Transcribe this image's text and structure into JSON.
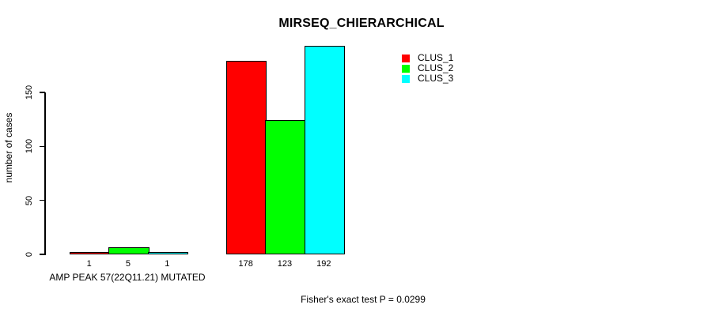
{
  "chart_data": {
    "type": "bar",
    "title": "MIRSEQ_CHIERARCHICAL",
    "ylabel": "number of cases",
    "xlabel": "AMP PEAK 57(22Q11.21) MUTATED",
    "annotation": "Fisher's exact test P = 0.0299",
    "yticks": [
      0,
      50,
      100,
      150
    ],
    "ylim": [
      0,
      195
    ],
    "grid": false,
    "legend_position": "top-right",
    "background_color": "#ffffff",
    "bar_border_color": "#000000",
    "series": [
      {
        "name": "CLUS_1",
        "color": "#ff0000",
        "values": [
          1,
          178
        ]
      },
      {
        "name": "CLUS_2",
        "color": "#00ff00",
        "values": [
          5,
          123
        ]
      },
      {
        "name": "CLUS_3",
        "color": "#00ffff",
        "values": [
          1,
          192
        ]
      }
    ]
  }
}
